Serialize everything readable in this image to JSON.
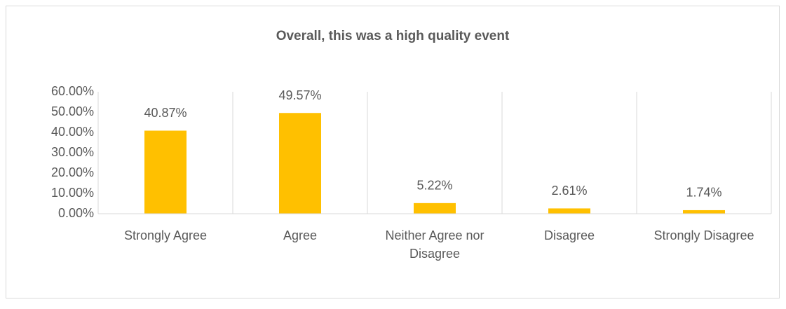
{
  "chart_data": {
    "type": "bar",
    "title": "Overall, this was a high quality event",
    "categories": [
      "Strongly Agree",
      "Agree",
      "Neither Agree nor Disagree",
      "Disagree",
      "Strongly Disagree"
    ],
    "values": [
      40.87,
      49.57,
      5.22,
      2.61,
      1.74
    ],
    "value_labels": [
      "40.87%",
      "49.57%",
      "5.22%",
      "2.61%",
      "1.74%"
    ],
    "color": "#ffc000",
    "ylim": [
      0,
      60
    ],
    "yticks": [
      {
        "value": 0,
        "label": "0.00%"
      },
      {
        "value": 10,
        "label": "10.00%"
      },
      {
        "value": 20,
        "label": "20.00%"
      },
      {
        "value": 30,
        "label": "30.00%"
      },
      {
        "value": 40,
        "label": "40.00%"
      },
      {
        "value": 50,
        "label": "50.00%"
      },
      {
        "value": 60,
        "label": "60.00%"
      }
    ],
    "grid": false
  }
}
